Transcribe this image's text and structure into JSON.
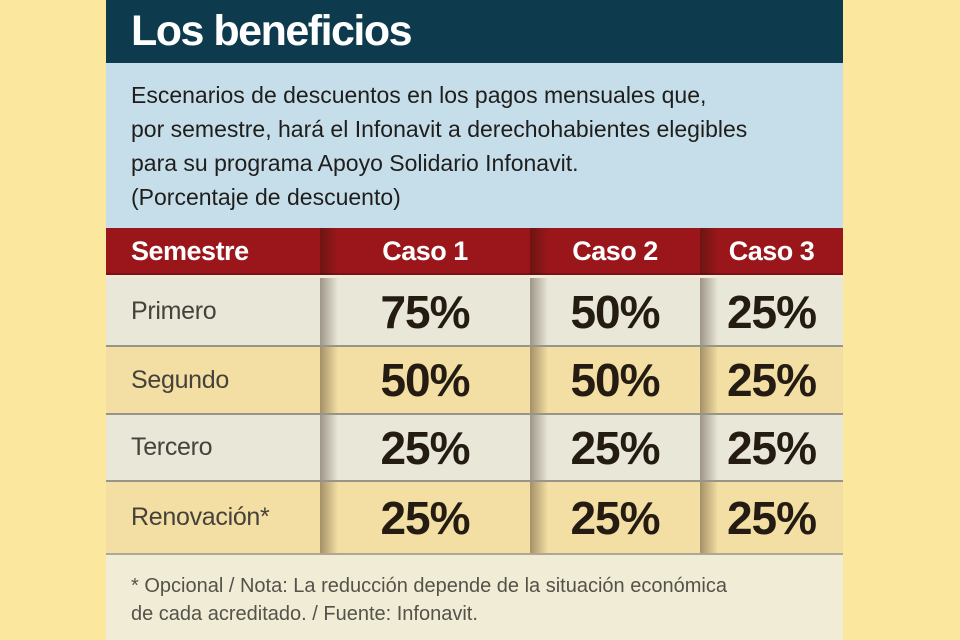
{
  "title": "Los beneficios",
  "description": {
    "lines": [
      "Escenarios de descuentos en los pagos mensuales que,",
      "por semestre, hará el Infonavit a derechohabientes elegibles",
      "para su programa Apoyo Solidario Infonavit.",
      "(Porcentaje de descuento)"
    ]
  },
  "chart_data": {
    "type": "table",
    "title": "Los beneficios",
    "subtitle": "Escenarios de descuentos en los pagos mensuales que, por semestre, hará el Infonavit a derechohabientes elegibles para su programa Apoyo Solidario Infonavit. (Porcentaje de descuento)",
    "columns": [
      "Semestre",
      "Caso 1",
      "Caso 2",
      "Caso 3"
    ],
    "rows": [
      [
        "Primero",
        "75%",
        "50%",
        "25%"
      ],
      [
        "Segundo",
        "50%",
        "50%",
        "25%"
      ],
      [
        "Tercero",
        "25%",
        "25%",
        "25%"
      ],
      [
        "Renovación*",
        "25%",
        "25%",
        "25%"
      ]
    ],
    "note": "* Opcional / Nota: La reducción depende de la situación económica de cada acreditado. / Fuente: Infonavit."
  },
  "footnote": {
    "lines": [
      "* Opcional / Nota: La reducción depende de la situación económica",
      "de cada acreditado. / Fuente: Infonavit."
    ]
  },
  "colors": {
    "background_yellow": "#FBE79E",
    "title_bar_teal": "#0D3A4C",
    "description_blue": "#C6DEE9",
    "header_red": "#9A161A",
    "row_cream": "#E9E7D8",
    "row_tan": "#F3DEA3",
    "footer_cream": "#F0ECD5",
    "value_text": "#241C12",
    "header_text": "#FFFFFF"
  }
}
